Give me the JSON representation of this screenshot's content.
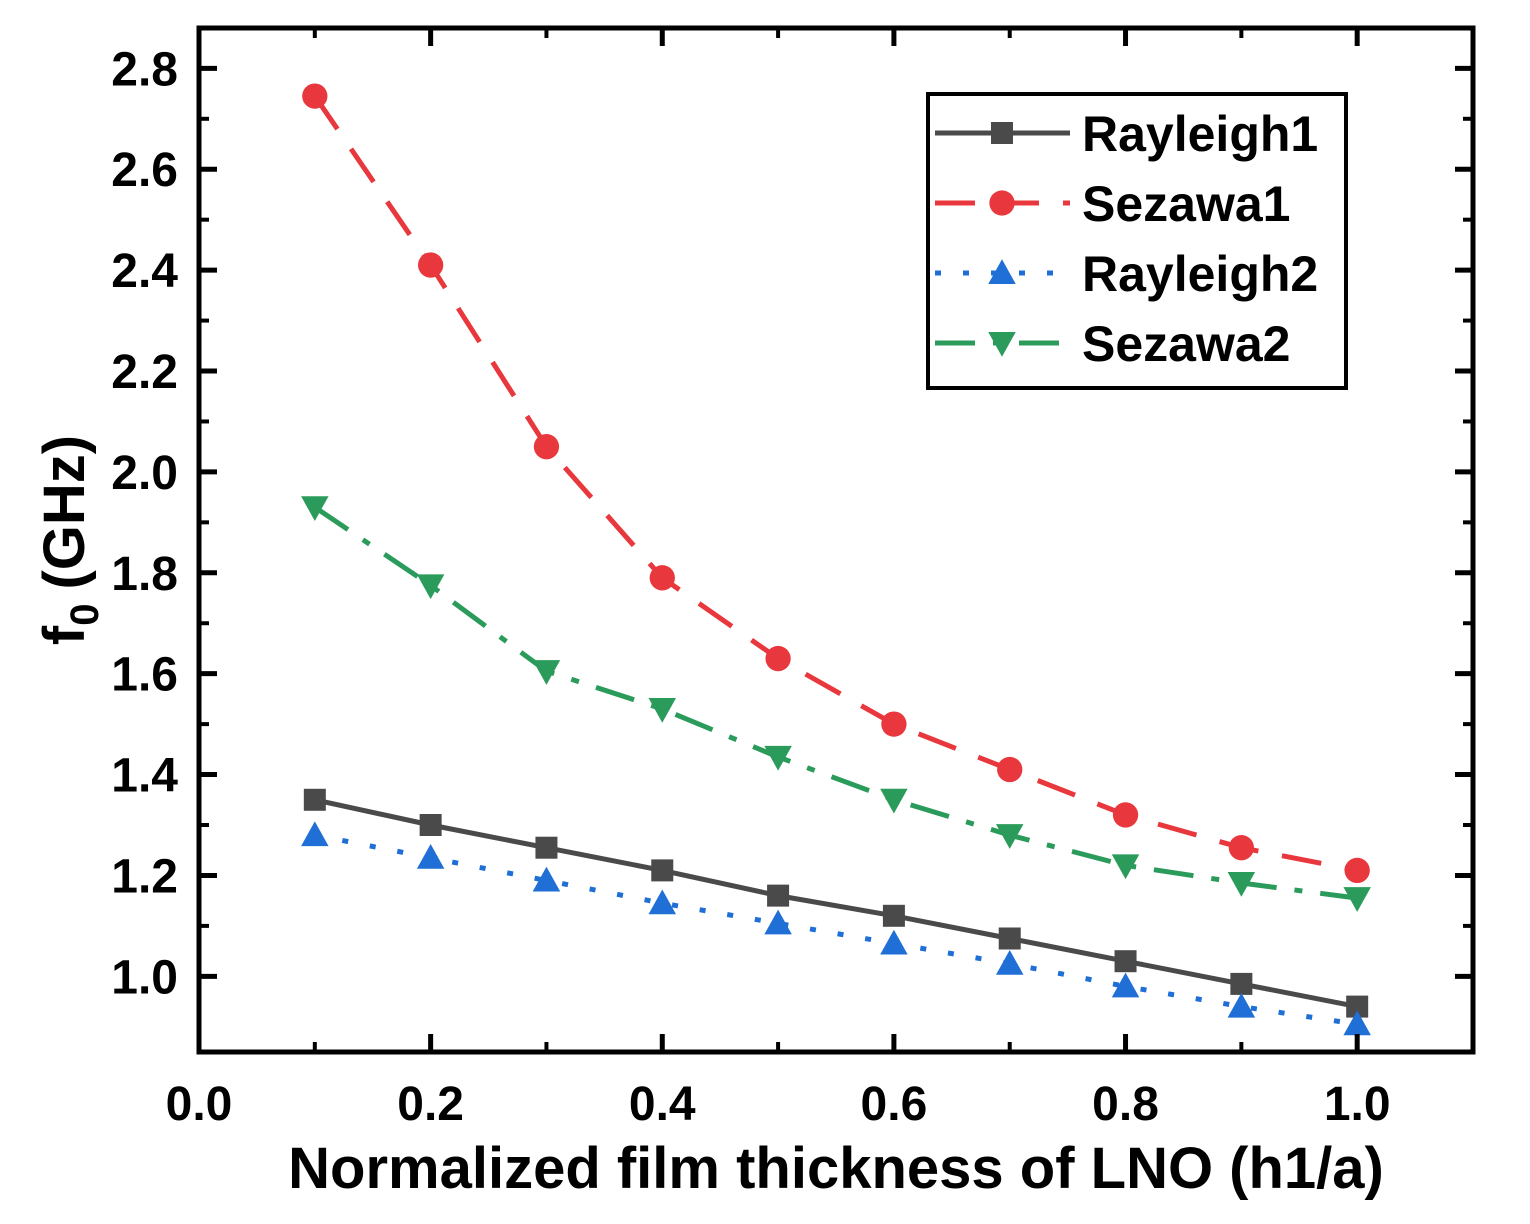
{
  "chart_data": {
    "type": "line",
    "title": "",
    "xlabel": "Normalized film thickness of LNO (h1/a)",
    "ylabel": "f0 (GHz)",
    "ylabel_main": "f",
    "ylabel_sub": "0",
    "ylabel_unit": "(GHz)",
    "xlim": [
      0.0,
      1.1
    ],
    "ylim": [
      0.85,
      2.88
    ],
    "xticks": [
      0.0,
      0.2,
      0.4,
      0.6,
      0.8,
      1.0
    ],
    "xtick_labels": [
      "0.0",
      "0.2",
      "0.4",
      "0.6",
      "0.8",
      "1.0"
    ],
    "yticks": [
      1.0,
      1.2,
      1.4,
      1.6,
      1.8,
      2.0,
      2.2,
      2.4,
      2.6,
      2.8
    ],
    "ytick_labels": [
      "1.0",
      "1.2",
      "1.4",
      "1.6",
      "1.8",
      "2.0",
      "2.2",
      "2.4",
      "2.6",
      "2.8"
    ],
    "grid": false,
    "legend_position": "top-right",
    "x": [
      0.1,
      0.2,
      0.3,
      0.4,
      0.5,
      0.6,
      0.7,
      0.8,
      0.9,
      1.0
    ],
    "series": [
      {
        "name": "Rayleigh1",
        "color": "#4a4a4a",
        "marker": "square",
        "dash": "solid",
        "values": [
          1.35,
          1.3,
          1.255,
          1.21,
          1.16,
          1.12,
          1.075,
          1.03,
          0.985,
          0.94
        ]
      },
      {
        "name": "Sezawa1",
        "color": "#e8383d",
        "marker": "circle",
        "dash": "dash",
        "values": [
          2.745,
          2.41,
          2.05,
          1.79,
          1.63,
          1.5,
          1.41,
          1.32,
          1.255,
          1.21
        ]
      },
      {
        "name": "Rayleigh2",
        "color": "#1f6fd6",
        "marker": "triangle-up",
        "dash": "dot",
        "values": [
          1.28,
          1.235,
          1.19,
          1.145,
          1.105,
          1.065,
          1.025,
          0.98,
          0.94,
          0.905
        ]
      },
      {
        "name": "Sezawa2",
        "color": "#2b9b5c",
        "marker": "triangle-down",
        "dash": "dashdot",
        "values": [
          1.93,
          1.775,
          1.605,
          1.53,
          1.435,
          1.35,
          1.28,
          1.22,
          1.185,
          1.155
        ]
      }
    ]
  }
}
